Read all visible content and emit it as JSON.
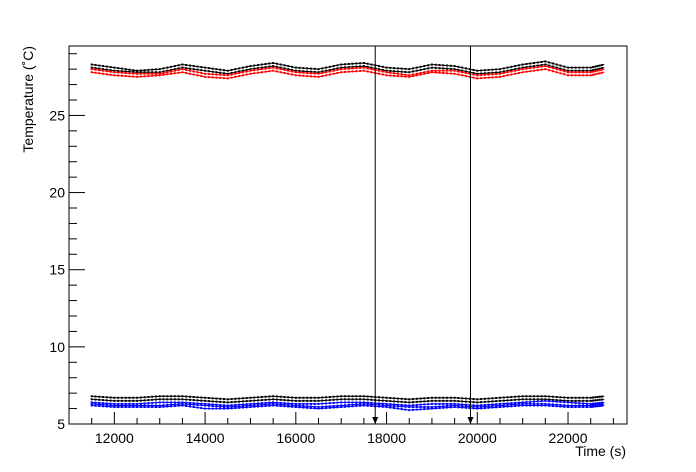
{
  "chart_data": {
    "type": "line",
    "title": "",
    "xlabel": "Time (s)",
    "ylabel": "Temperature (˚C)",
    "xlim": [
      11000,
      23300
    ],
    "ylim": [
      5,
      29.5
    ],
    "x_ticks": [
      12000,
      14000,
      16000,
      18000,
      20000,
      22000
    ],
    "y_ticks": [
      5,
      10,
      15,
      20,
      25
    ],
    "grid": false,
    "legend": "none",
    "x": [
      11500,
      12000,
      12500,
      13000,
      13500,
      14000,
      14500,
      15000,
      15500,
      16000,
      16500,
      17000,
      17500,
      18000,
      18500,
      19000,
      19500,
      20000,
      20500,
      21000,
      21500,
      22000,
      22500,
      22800
    ],
    "series": [
      {
        "color": "#000000",
        "values": [
          28.3,
          28.1,
          27.9,
          28.0,
          28.3,
          28.1,
          27.9,
          28.2,
          28.4,
          28.1,
          28.0,
          28.3,
          28.4,
          28.1,
          28.0,
          28.3,
          28.2,
          27.9,
          28.0,
          28.3,
          28.5,
          28.1,
          28.1,
          28.3
        ]
      },
      {
        "color": "#000000",
        "values": [
          28.1,
          27.9,
          27.8,
          27.8,
          28.1,
          27.9,
          27.7,
          28.0,
          28.2,
          27.9,
          27.8,
          28.1,
          28.2,
          27.9,
          27.8,
          28.1,
          28.0,
          27.7,
          27.8,
          28.1,
          28.3,
          27.9,
          27.9,
          28.1
        ]
      },
      {
        "color": "#ff0000",
        "values": [
          28.0,
          27.8,
          27.7,
          27.7,
          28.0,
          27.7,
          27.6,
          27.9,
          28.1,
          27.8,
          27.7,
          28.0,
          28.1,
          27.8,
          27.6,
          27.9,
          27.9,
          27.6,
          27.7,
          28.0,
          28.2,
          27.8,
          27.8,
          28.0
        ]
      },
      {
        "color": "#ff0000",
        "values": [
          27.8,
          27.6,
          27.5,
          27.6,
          27.8,
          27.5,
          27.4,
          27.7,
          27.9,
          27.6,
          27.5,
          27.8,
          27.9,
          27.6,
          27.5,
          27.8,
          27.7,
          27.4,
          27.5,
          27.8,
          28.0,
          27.6,
          27.6,
          27.8
        ]
      },
      {
        "color": "#000000",
        "values": [
          6.8,
          6.7,
          6.7,
          6.8,
          6.8,
          6.7,
          6.6,
          6.7,
          6.8,
          6.7,
          6.7,
          6.8,
          6.8,
          6.7,
          6.6,
          6.7,
          6.7,
          6.6,
          6.7,
          6.8,
          6.8,
          6.7,
          6.7,
          6.8
        ]
      },
      {
        "color": "#000000",
        "values": [
          6.6,
          6.5,
          6.5,
          6.6,
          6.6,
          6.5,
          6.4,
          6.5,
          6.6,
          6.5,
          6.5,
          6.6,
          6.6,
          6.5,
          6.4,
          6.5,
          6.5,
          6.4,
          6.5,
          6.6,
          6.6,
          6.5,
          6.5,
          6.6
        ]
      },
      {
        "color": "#0000ff",
        "values": [
          6.4,
          6.3,
          6.3,
          6.4,
          6.4,
          6.3,
          6.2,
          6.3,
          6.4,
          6.3,
          6.3,
          6.4,
          6.4,
          6.3,
          6.2,
          6.3,
          6.3,
          6.2,
          6.3,
          6.4,
          6.5,
          6.4,
          6.3,
          6.4
        ]
      },
      {
        "color": "#0000ff",
        "values": [
          6.3,
          6.2,
          6.2,
          6.2,
          6.3,
          6.2,
          6.1,
          6.2,
          6.3,
          6.2,
          6.1,
          6.2,
          6.3,
          6.2,
          6.1,
          6.1,
          6.2,
          6.1,
          6.2,
          6.3,
          6.3,
          6.2,
          6.2,
          6.3
        ]
      },
      {
        "color": "#0000ff",
        "values": [
          6.2,
          6.1,
          6.1,
          6.1,
          6.2,
          6.0,
          6.0,
          6.1,
          6.2,
          6.1,
          6.0,
          6.1,
          6.2,
          6.1,
          5.9,
          6.0,
          6.1,
          6.0,
          6.1,
          6.2,
          6.2,
          6.1,
          6.1,
          6.2
        ]
      }
    ],
    "markers": [
      {
        "x": 17750,
        "y_top": 29.5,
        "y_bottom": 5.0
      },
      {
        "x": 19850,
        "y_top": 29.5,
        "y_bottom": 5.0
      }
    ]
  }
}
